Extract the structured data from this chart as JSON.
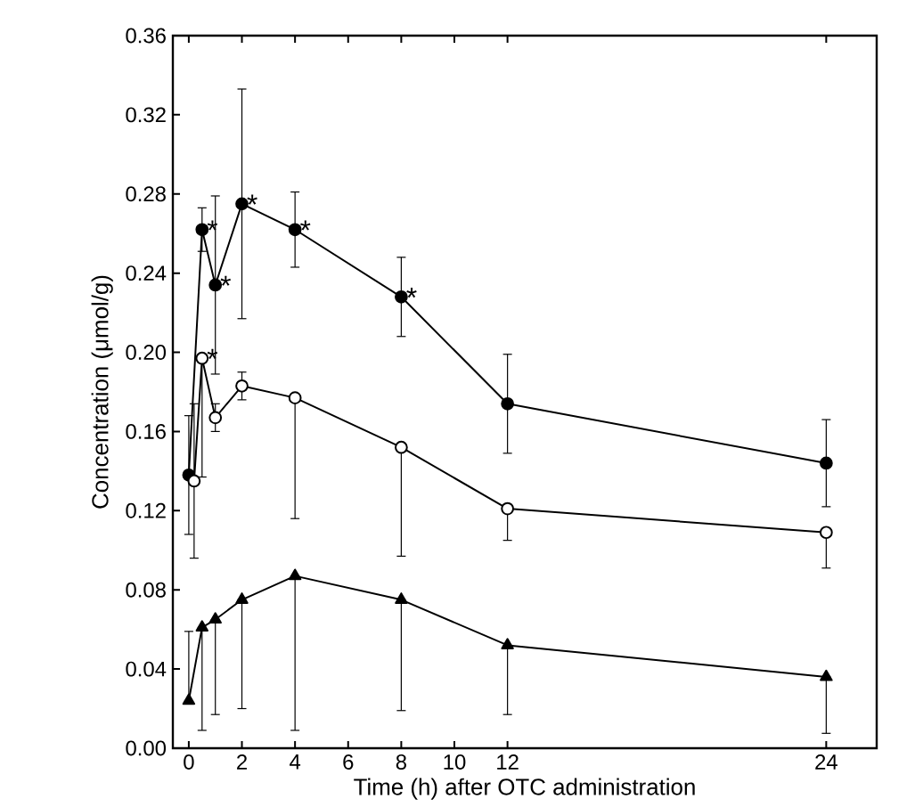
{
  "chart_data": {
    "type": "line",
    "xlabel": "Time (h) after OTC administration",
    "ylabel": "Concentration (μmol/g)",
    "xlim": [
      -0.6,
      25.9
    ],
    "ylim": [
      0,
      0.36
    ],
    "xticks": [
      0,
      2,
      4,
      6,
      8,
      10,
      12,
      24
    ],
    "yticks": [
      {
        "value": 0,
        "label": "0.00"
      },
      {
        "value": 0.04,
        "label": "0.04"
      },
      {
        "value": 0.08,
        "label": "0.08"
      },
      {
        "value": 0.12,
        "label": "0.12"
      },
      {
        "value": 0.16,
        "label": "0.16"
      },
      {
        "value": 0.2,
        "label": "0.20"
      },
      {
        "value": 0.24,
        "label": "0.24"
      },
      {
        "value": 0.28,
        "label": "0.28"
      },
      {
        "value": 0.32,
        "label": "0.32"
      },
      {
        "value": 0.36,
        "label": "0.36"
      }
    ],
    "x": [
      0,
      0.5,
      1,
      2,
      4,
      8,
      12,
      24
    ],
    "series": [
      {
        "color": "#000000",
        "marker": "circle",
        "values": [
          0.138,
          0.262,
          0.234,
          0.275,
          0.262,
          0.228,
          0.174,
          0.144
        ],
        "errors": [
          0.03,
          0.011,
          0.045,
          0.058,
          0.019,
          0.02,
          0.025,
          0.022
        ]
      },
      {
        "color": "#ffffff",
        "marker": "circle",
        "x": [
          0.2,
          0.5,
          1,
          2,
          4,
          8,
          12,
          24
        ],
        "values": [
          0.135,
          0.197,
          0.167,
          0.183,
          0.177,
          0.152,
          0.121,
          0.109
        ],
        "errors": [
          0.039,
          [
            0.137,
            0.197
          ],
          0.007,
          0.007,
          [
            0.116,
            0.177
          ],
          [
            0.097,
            0.152
          ],
          [
            0.105,
            0.121
          ],
          [
            0.091,
            0.109
          ]
        ]
      },
      {
        "color": "#000000",
        "marker": "triangle",
        "values": [
          0.024,
          0.061,
          0.065,
          0.075,
          0.087,
          0.075,
          0.052,
          0.036
        ],
        "errors": [
          [
            0.024,
            0.059
          ],
          [
            0.009,
            0.061
          ],
          [
            0.017,
            0.065
          ],
          [
            0.02,
            0.075
          ],
          [
            0.009,
            0.087
          ],
          [
            0.019,
            0.075
          ],
          [
            0.017,
            0.052
          ],
          [
            0.0075,
            0.036
          ]
        ]
      }
    ],
    "annotations": [
      {
        "text": "*",
        "x": 0.5,
        "y": 0.262
      },
      {
        "text": "*",
        "x": 1,
        "y": 0.234
      },
      {
        "text": "*",
        "x": 2,
        "y": 0.275
      },
      {
        "text": "*",
        "x": 4,
        "y": 0.262
      },
      {
        "text": "*",
        "x": 8,
        "y": 0.228
      },
      {
        "text": "*",
        "x": 0.5,
        "y": 0.197
      }
    ]
  }
}
